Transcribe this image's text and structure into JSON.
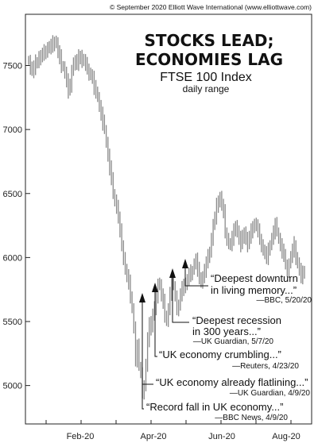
{
  "copyright": "© September 2020 Elliott Wave International (www.elliottwave.com)",
  "chart_data": {
    "type": "ohlc",
    "title": [
      "STOCKS LEAD;",
      "ECONOMIES LAG"
    ],
    "subtitle": "FTSE 100 Index",
    "unit_label": "daily range",
    "y_ticks": [
      5000,
      5500,
      6000,
      6500,
      7000,
      7500
    ],
    "x_ticks": [
      "Feb-20",
      "Apr-20",
      "Jun-20",
      "Aug-20"
    ],
    "y_range": [
      4700,
      7900
    ],
    "series": [
      {
        "values": [
          7540,
          7470,
          7480,
          7460,
          7520,
          7530,
          7570,
          7560,
          7580,
          7600,
          7620,
          7640,
          7630,
          7650,
          7670,
          7690,
          7670,
          7600,
          7560,
          7500,
          7490,
          7440,
          7380,
          7300,
          7330,
          7470,
          7520,
          7530,
          7500,
          7560,
          7580,
          7540,
          7530,
          7500,
          7480,
          7440,
          7420,
          7400,
          7320,
          7300,
          7250,
          7180,
          7120,
          7050,
          7000,
          6900,
          6800,
          6700,
          6600,
          6500,
          6450,
          6400,
          6300,
          6200,
          6100,
          6000,
          5900,
          5850,
          5800,
          5700,
          5600,
          5450,
          5200,
          5300,
          5150,
          5100,
          4950,
          4990,
          5150,
          5350,
          5500,
          5450,
          5550,
          5600,
          5700,
          5800,
          5780,
          5700,
          5650,
          5550,
          5500,
          5600,
          5720,
          5800,
          5780,
          5700,
          5600,
          5620,
          5700,
          5750,
          5800,
          5780,
          5820,
          5860,
          5880,
          5900,
          5950,
          5980,
          5900,
          5850,
          5800,
          5850,
          5900,
          5950,
          6000,
          6050,
          6150,
          6250,
          6300,
          6400,
          6450,
          6470,
          6400,
          6350,
          6200,
          6150,
          6100,
          6100,
          6150,
          6200,
          6250,
          6200,
          6150,
          6100,
          6150,
          6200,
          6150,
          6100,
          6150,
          6200,
          6250,
          6260,
          6240,
          6200,
          6150,
          6100,
          6050,
          6030,
          6000,
          6050,
          6100,
          6150,
          6200,
          6250,
          6200,
          6150,
          6100,
          6050,
          6000,
          5950,
          5900,
          5950,
          6000,
          6050,
          6100,
          6000,
          5950,
          5900,
          5850,
          5870,
          5900
        ]
      }
    ],
    "annotations": [
      {
        "quote_lines": [
          "“Deepest downturn",
          "in living memory...”"
        ],
        "source": "—BBC, 5/20/20"
      },
      {
        "quote_lines": [
          "“Deepest recession",
          "in 300 years...”"
        ],
        "source": "—UK Guardian, 5/7/20"
      },
      {
        "quote_lines": [
          "“UK economy crumbling...”"
        ],
        "source": "—Reuters, 4/23/20"
      },
      {
        "quote_lines": [
          "“UK economy already flatlining...”"
        ],
        "source": "—UK Guardian, 4/9/20"
      },
      {
        "quote_lines": [
          "“Record fall in UK economy...”"
        ],
        "source": "—BBC News, 4/9/20"
      }
    ]
  }
}
